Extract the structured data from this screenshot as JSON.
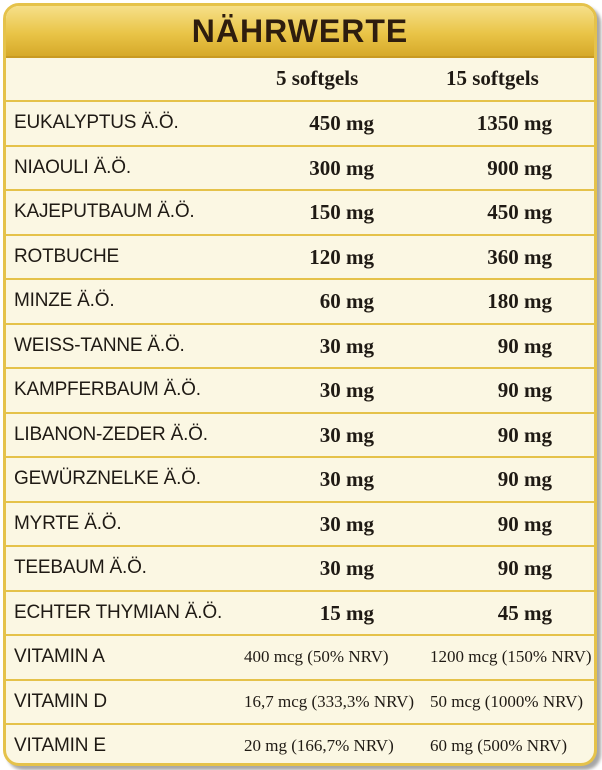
{
  "title": "NÄHRWERTE",
  "columns": [
    "5 softgels",
    "15 softgels"
  ],
  "rows": [
    {
      "name": "EUKALYPTUS Ä.Ö.",
      "v1": "450 mg",
      "v2": "1350 mg"
    },
    {
      "name": "NIAOULI Ä.Ö.",
      "v1": "300 mg",
      "v2": "900 mg"
    },
    {
      "name": "KAJEPUTBAUM Ä.Ö.",
      "v1": "150 mg",
      "v2": "450 mg"
    },
    {
      "name": "ROTBUCHE",
      "v1": "120 mg",
      "v2": "360 mg"
    },
    {
      "name": "MINZE Ä.Ö.",
      "v1": "60 mg",
      "v2": "180 mg"
    },
    {
      "name": "WEISS-TANNE Ä.Ö.",
      "v1": "30 mg",
      "v2": "90 mg"
    },
    {
      "name": "KAMPFERBAUM Ä.Ö.",
      "v1": "30 mg",
      "v2": "90 mg"
    },
    {
      "name": "LIBANON-ZEDER Ä.Ö.",
      "v1": "30 mg",
      "v2": "90 mg"
    },
    {
      "name": "GEWÜRZNELKE Ä.Ö.",
      "v1": "30 mg",
      "v2": "90 mg"
    },
    {
      "name": "MYRTE Ä.Ö.",
      "v1": "30 mg",
      "v2": "90 mg"
    },
    {
      "name": "TEEBAUM Ä.Ö.",
      "v1": "30 mg",
      "v2": "90 mg"
    },
    {
      "name": "ECHTER THYMIAN Ä.Ö.",
      "v1": "15 mg",
      "v2": "45 mg"
    }
  ],
  "vitamins": [
    {
      "name": "VITAMIN A",
      "v1": "400 mcg (50% NRV)",
      "v2": "1200 mcg (150% NRV)"
    },
    {
      "name": "VITAMIN D",
      "v1": "16,7 mcg (333,3% NRV)",
      "v2": "50 mcg (1000% NRV)"
    },
    {
      "name": "VITAMIN E",
      "v1": "20 mg (166,7% NRV)",
      "v2": "60 mg (500% NRV)"
    }
  ],
  "colors": {
    "accent": "#e5c24a",
    "background": "#fbf7e3",
    "text": "#1f1a14"
  }
}
